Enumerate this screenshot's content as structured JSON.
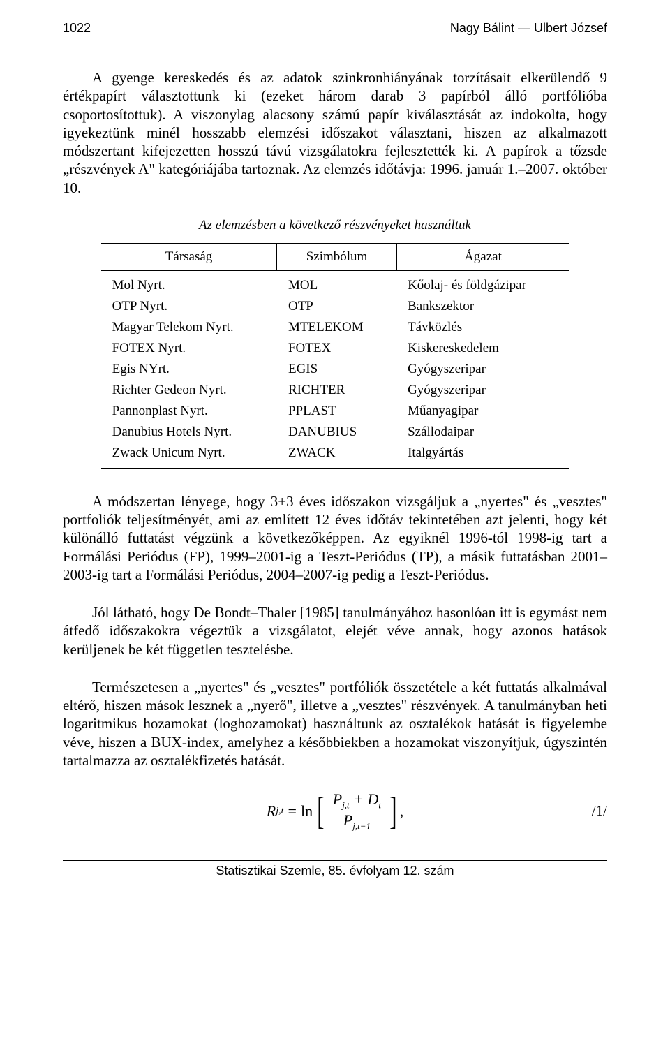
{
  "header": {
    "page_number": "1022",
    "authors": "Nagy Bálint — Ulbert József"
  },
  "paragraphs": {
    "p1": "A gyenge kereskedés és az adatok szinkronhiányának torzításait elkerülendő 9 értékpapírt választottunk ki (ezeket három darab 3 papírból álló portfólióba csoportosítottuk). A viszonylag alacsony számú papír kiválasztását az indokolta, hogy igyekeztünk minél hosszabb elemzési időszakot választani, hiszen az alkalmazott módszertant kifejezetten hosszú távú vizsgálatokra fejlesztették ki. A papírok a tőzsde „részvények A\" kategóriájába tartoznak. Az elemzés időtávja: 1996. január 1.–2007. október 10.",
    "p2": "A módszertan lényege, hogy 3+3 éves időszakon vizsgáljuk a „nyertes\" és „vesztes\" portfoliók teljesítményét, ami az említett 12 éves időtáv tekintetében azt jelenti, hogy két különálló futtatást végzünk a következőképpen. Az egyiknél 1996-tól 1998-ig tart a Formálási Periódus (FP), 1999–2001-ig a Teszt-Periódus (TP), a másik futtatásban 2001–2003-ig tart a Formálási Periódus, 2004–2007-ig pedig a Teszt-Periódus.",
    "p3": "Jól látható, hogy De Bondt–Thaler [1985] tanulmányához hasonlóan itt is egymást nem átfedő időszakokra végeztük a vizsgálatot, elejét véve annak, hogy azonos hatások kerüljenek be két független tesztelésbe.",
    "p4": "Természetesen a „nyertes\" és „vesztes\" portfóliók összetétele a két futtatás alkalmával eltérő, hiszen mások lesznek a „nyerő\", illetve a „vesztes\" részvények. A tanulmányban heti logaritmikus hozamokat (loghozamokat) használtunk az osztalékok hatását is figyelembe véve, hiszen a BUX-index, amelyhez a későbbiekben a hozamokat viszonyítjuk, úgyszintén tartalmazza az osztalékfizetés hatását."
  },
  "table": {
    "caption": "Az elemzésben a következő részvényeket használtuk",
    "columns": [
      "Társaság",
      "Szimbólum",
      "Ágazat"
    ],
    "rows": [
      [
        "Mol Nyrt.",
        "MOL",
        "Kőolaj- és földgázipar"
      ],
      [
        "OTP Nyrt.",
        "OTP",
        "Bankszektor"
      ],
      [
        "Magyar Telekom Nyrt.",
        "MTELEKOM",
        "Távközlés"
      ],
      [
        "FOTEX Nyrt.",
        "FOTEX",
        "Kiskereskedelem"
      ],
      [
        "Egis NYrt.",
        "EGIS",
        "Gyógyszeripar"
      ],
      [
        "Richter Gedeon Nyrt.",
        "RICHTER",
        "Gyógyszeripar"
      ],
      [
        "Pannonplast Nyrt.",
        "PPLAST",
        "Műanyagipar"
      ],
      [
        "Danubius Hotels Nyrt.",
        "DANUBIUS",
        "Szállodaipar"
      ],
      [
        "Zwack Unicum Nyrt.",
        "ZWACK",
        "Italgyártás"
      ]
    ]
  },
  "formula": {
    "lhs_var": "R",
    "lhs_sub": "j,t",
    "num_term1": "P",
    "num_sub1": "j,t",
    "num_plus": " + ",
    "num_term2": "D",
    "num_sub2": "t",
    "den_term": "P",
    "den_sub": "j,t−1",
    "trailing": ",",
    "number": "/1/"
  },
  "footer": {
    "text": "Statisztikai Szemle, 85. évfolyam 12. szám"
  }
}
